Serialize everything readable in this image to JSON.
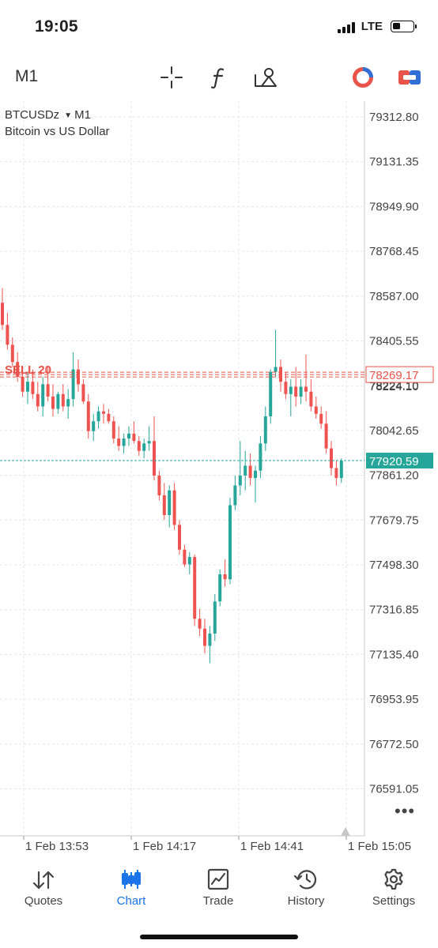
{
  "status_bar": {
    "time": "19:05",
    "network": "LTE",
    "battery_level": 0.3
  },
  "toolbar": {
    "timeframe": "M1",
    "icons": [
      "crosshair-icon",
      "function-icon",
      "objects-icon",
      "one-click-trading-icon",
      "trade-toggle-icon"
    ]
  },
  "chart": {
    "symbol": "BTCUSDz",
    "symbol_timeframe": "M1",
    "description": "Bitcoin vs US Dollar",
    "sell_label": "SELL 20",
    "sell_price": "78269.17",
    "current_price": "77920.59",
    "hidden_price_label": "78224.10",
    "price_ticks": [
      "79312.80",
      "79131.35",
      "78949.90",
      "78768.45",
      "78587.00",
      "78405.55",
      "78224.10",
      "78042.65",
      "77861.20",
      "77679.75",
      "77498.30",
      "77316.85",
      "77135.40",
      "76953.95",
      "76772.50",
      "76591.05"
    ],
    "time_ticks": [
      "1 Feb 13:53",
      "1 Feb 14:17",
      "1 Feb 14:41",
      "1 Feb 15:05"
    ],
    "colors": {
      "up": "#26a69a",
      "down": "#ef5350",
      "sell": "#e8534a",
      "grid": "#e6e6e6"
    }
  },
  "chart_data": {
    "type": "candlestick",
    "symbol": "BTCUSDz",
    "timeframe": "M1",
    "y_range": [
      76500,
      79400
    ],
    "candles": [
      {
        "o": 78560,
        "h": 78620,
        "l": 78450,
        "c": 78470
      },
      {
        "o": 78470,
        "h": 78520,
        "l": 78370,
        "c": 78390
      },
      {
        "o": 78390,
        "h": 78420,
        "l": 78300,
        "c": 78320
      },
      {
        "o": 78320,
        "h": 78360,
        "l": 78240,
        "c": 78260
      },
      {
        "o": 78260,
        "h": 78300,
        "l": 78180,
        "c": 78200
      },
      {
        "o": 78200,
        "h": 78280,
        "l": 78150,
        "c": 78240
      },
      {
        "o": 78240,
        "h": 78290,
        "l": 78170,
        "c": 78190
      },
      {
        "o": 78190,
        "h": 78240,
        "l": 78120,
        "c": 78140
      },
      {
        "o": 78140,
        "h": 78260,
        "l": 78100,
        "c": 78230
      },
      {
        "o": 78230,
        "h": 78300,
        "l": 78160,
        "c": 78180
      },
      {
        "o": 78180,
        "h": 78230,
        "l": 78100,
        "c": 78130
      },
      {
        "o": 78130,
        "h": 78200,
        "l": 78110,
        "c": 78190
      },
      {
        "o": 78190,
        "h": 78230,
        "l": 78120,
        "c": 78140
      },
      {
        "o": 78140,
        "h": 78210,
        "l": 78090,
        "c": 78170
      },
      {
        "o": 78170,
        "h": 78360,
        "l": 78140,
        "c": 78290
      },
      {
        "o": 78290,
        "h": 78330,
        "l": 78200,
        "c": 78230
      },
      {
        "o": 78230,
        "h": 78250,
        "l": 78150,
        "c": 78160
      },
      {
        "o": 78160,
        "h": 78190,
        "l": 78010,
        "c": 78040
      },
      {
        "o": 78040,
        "h": 78110,
        "l": 78000,
        "c": 78080
      },
      {
        "o": 78080,
        "h": 78140,
        "l": 78050,
        "c": 78120
      },
      {
        "o": 78120,
        "h": 78150,
        "l": 78070,
        "c": 78110
      },
      {
        "o": 78110,
        "h": 78130,
        "l": 78070,
        "c": 78080
      },
      {
        "o": 78080,
        "h": 78100,
        "l": 77990,
        "c": 78010
      },
      {
        "o": 78010,
        "h": 78060,
        "l": 77960,
        "c": 77980
      },
      {
        "o": 77980,
        "h": 78030,
        "l": 77950,
        "c": 78010
      },
      {
        "o": 78010,
        "h": 78060,
        "l": 77980,
        "c": 78030
      },
      {
        "o": 78030,
        "h": 78080,
        "l": 77990,
        "c": 78000
      },
      {
        "o": 78000,
        "h": 78020,
        "l": 77940,
        "c": 77960
      },
      {
        "o": 77960,
        "h": 78010,
        "l": 77930,
        "c": 77990
      },
      {
        "o": 77990,
        "h": 78060,
        "l": 77960,
        "c": 78000
      },
      {
        "o": 78000,
        "h": 78100,
        "l": 77840,
        "c": 77860
      },
      {
        "o": 77860,
        "h": 77880,
        "l": 77760,
        "c": 77780
      },
      {
        "o": 77780,
        "h": 77830,
        "l": 77680,
        "c": 77700
      },
      {
        "o": 77700,
        "h": 77820,
        "l": 77650,
        "c": 77800
      },
      {
        "o": 77800,
        "h": 77830,
        "l": 77640,
        "c": 77660
      },
      {
        "o": 77660,
        "h": 77680,
        "l": 77540,
        "c": 77560
      },
      {
        "o": 77560,
        "h": 77580,
        "l": 77490,
        "c": 77500
      },
      {
        "o": 77500,
        "h": 77550,
        "l": 77460,
        "c": 77530
      },
      {
        "o": 77530,
        "h": 77540,
        "l": 77250,
        "c": 77280
      },
      {
        "o": 77280,
        "h": 77320,
        "l": 77210,
        "c": 77240
      },
      {
        "o": 77240,
        "h": 77280,
        "l": 77140,
        "c": 77170
      },
      {
        "o": 77170,
        "h": 77250,
        "l": 77100,
        "c": 77220
      },
      {
        "o": 77220,
        "h": 77380,
        "l": 77190,
        "c": 77350
      },
      {
        "o": 77350,
        "h": 77480,
        "l": 77330,
        "c": 77460
      },
      {
        "o": 77460,
        "h": 77520,
        "l": 77410,
        "c": 77440
      },
      {
        "o": 77440,
        "h": 77770,
        "l": 77420,
        "c": 77740
      },
      {
        "o": 77740,
        "h": 77860,
        "l": 77720,
        "c": 77820
      },
      {
        "o": 77820,
        "h": 78000,
        "l": 77780,
        "c": 77860
      },
      {
        "o": 77860,
        "h": 77960,
        "l": 77800,
        "c": 77900
      },
      {
        "o": 77900,
        "h": 77950,
        "l": 77820,
        "c": 77850
      },
      {
        "o": 77850,
        "h": 77900,
        "l": 77750,
        "c": 77880
      },
      {
        "o": 77880,
        "h": 78020,
        "l": 77850,
        "c": 77990
      },
      {
        "o": 77990,
        "h": 78140,
        "l": 77960,
        "c": 78100
      },
      {
        "o": 78100,
        "h": 78290,
        "l": 78070,
        "c": 78280
      },
      {
        "o": 78280,
        "h": 78450,
        "l": 78260,
        "c": 78300
      },
      {
        "o": 78300,
        "h": 78330,
        "l": 78200,
        "c": 78240
      },
      {
        "o": 78240,
        "h": 78280,
        "l": 78170,
        "c": 78190
      },
      {
        "o": 78190,
        "h": 78250,
        "l": 78100,
        "c": 78220
      },
      {
        "o": 78220,
        "h": 78300,
        "l": 78140,
        "c": 78180
      },
      {
        "o": 78180,
        "h": 78250,
        "l": 78150,
        "c": 78220
      },
      {
        "o": 78220,
        "h": 78350,
        "l": 78160,
        "c": 78200
      },
      {
        "o": 78200,
        "h": 78250,
        "l": 78120,
        "c": 78140
      },
      {
        "o": 78140,
        "h": 78180,
        "l": 78090,
        "c": 78110
      },
      {
        "o": 78110,
        "h": 78140,
        "l": 78050,
        "c": 78070
      },
      {
        "o": 78070,
        "h": 78120,
        "l": 77950,
        "c": 77970
      },
      {
        "o": 77970,
        "h": 78000,
        "l": 77860,
        "c": 77890
      },
      {
        "o": 77890,
        "h": 77920,
        "l": 77820,
        "c": 77850
      },
      {
        "o": 77850,
        "h": 77930,
        "l": 77830,
        "c": 77920
      }
    ]
  },
  "tabs": [
    {
      "label": "Quotes",
      "icon": "quotes-icon",
      "active": false
    },
    {
      "label": "Chart",
      "icon": "chart-icon",
      "active": true
    },
    {
      "label": "Trade",
      "icon": "trade-icon",
      "active": false
    },
    {
      "label": "History",
      "icon": "history-icon",
      "active": false
    },
    {
      "label": "Settings",
      "icon": "settings-icon",
      "active": false
    }
  ]
}
